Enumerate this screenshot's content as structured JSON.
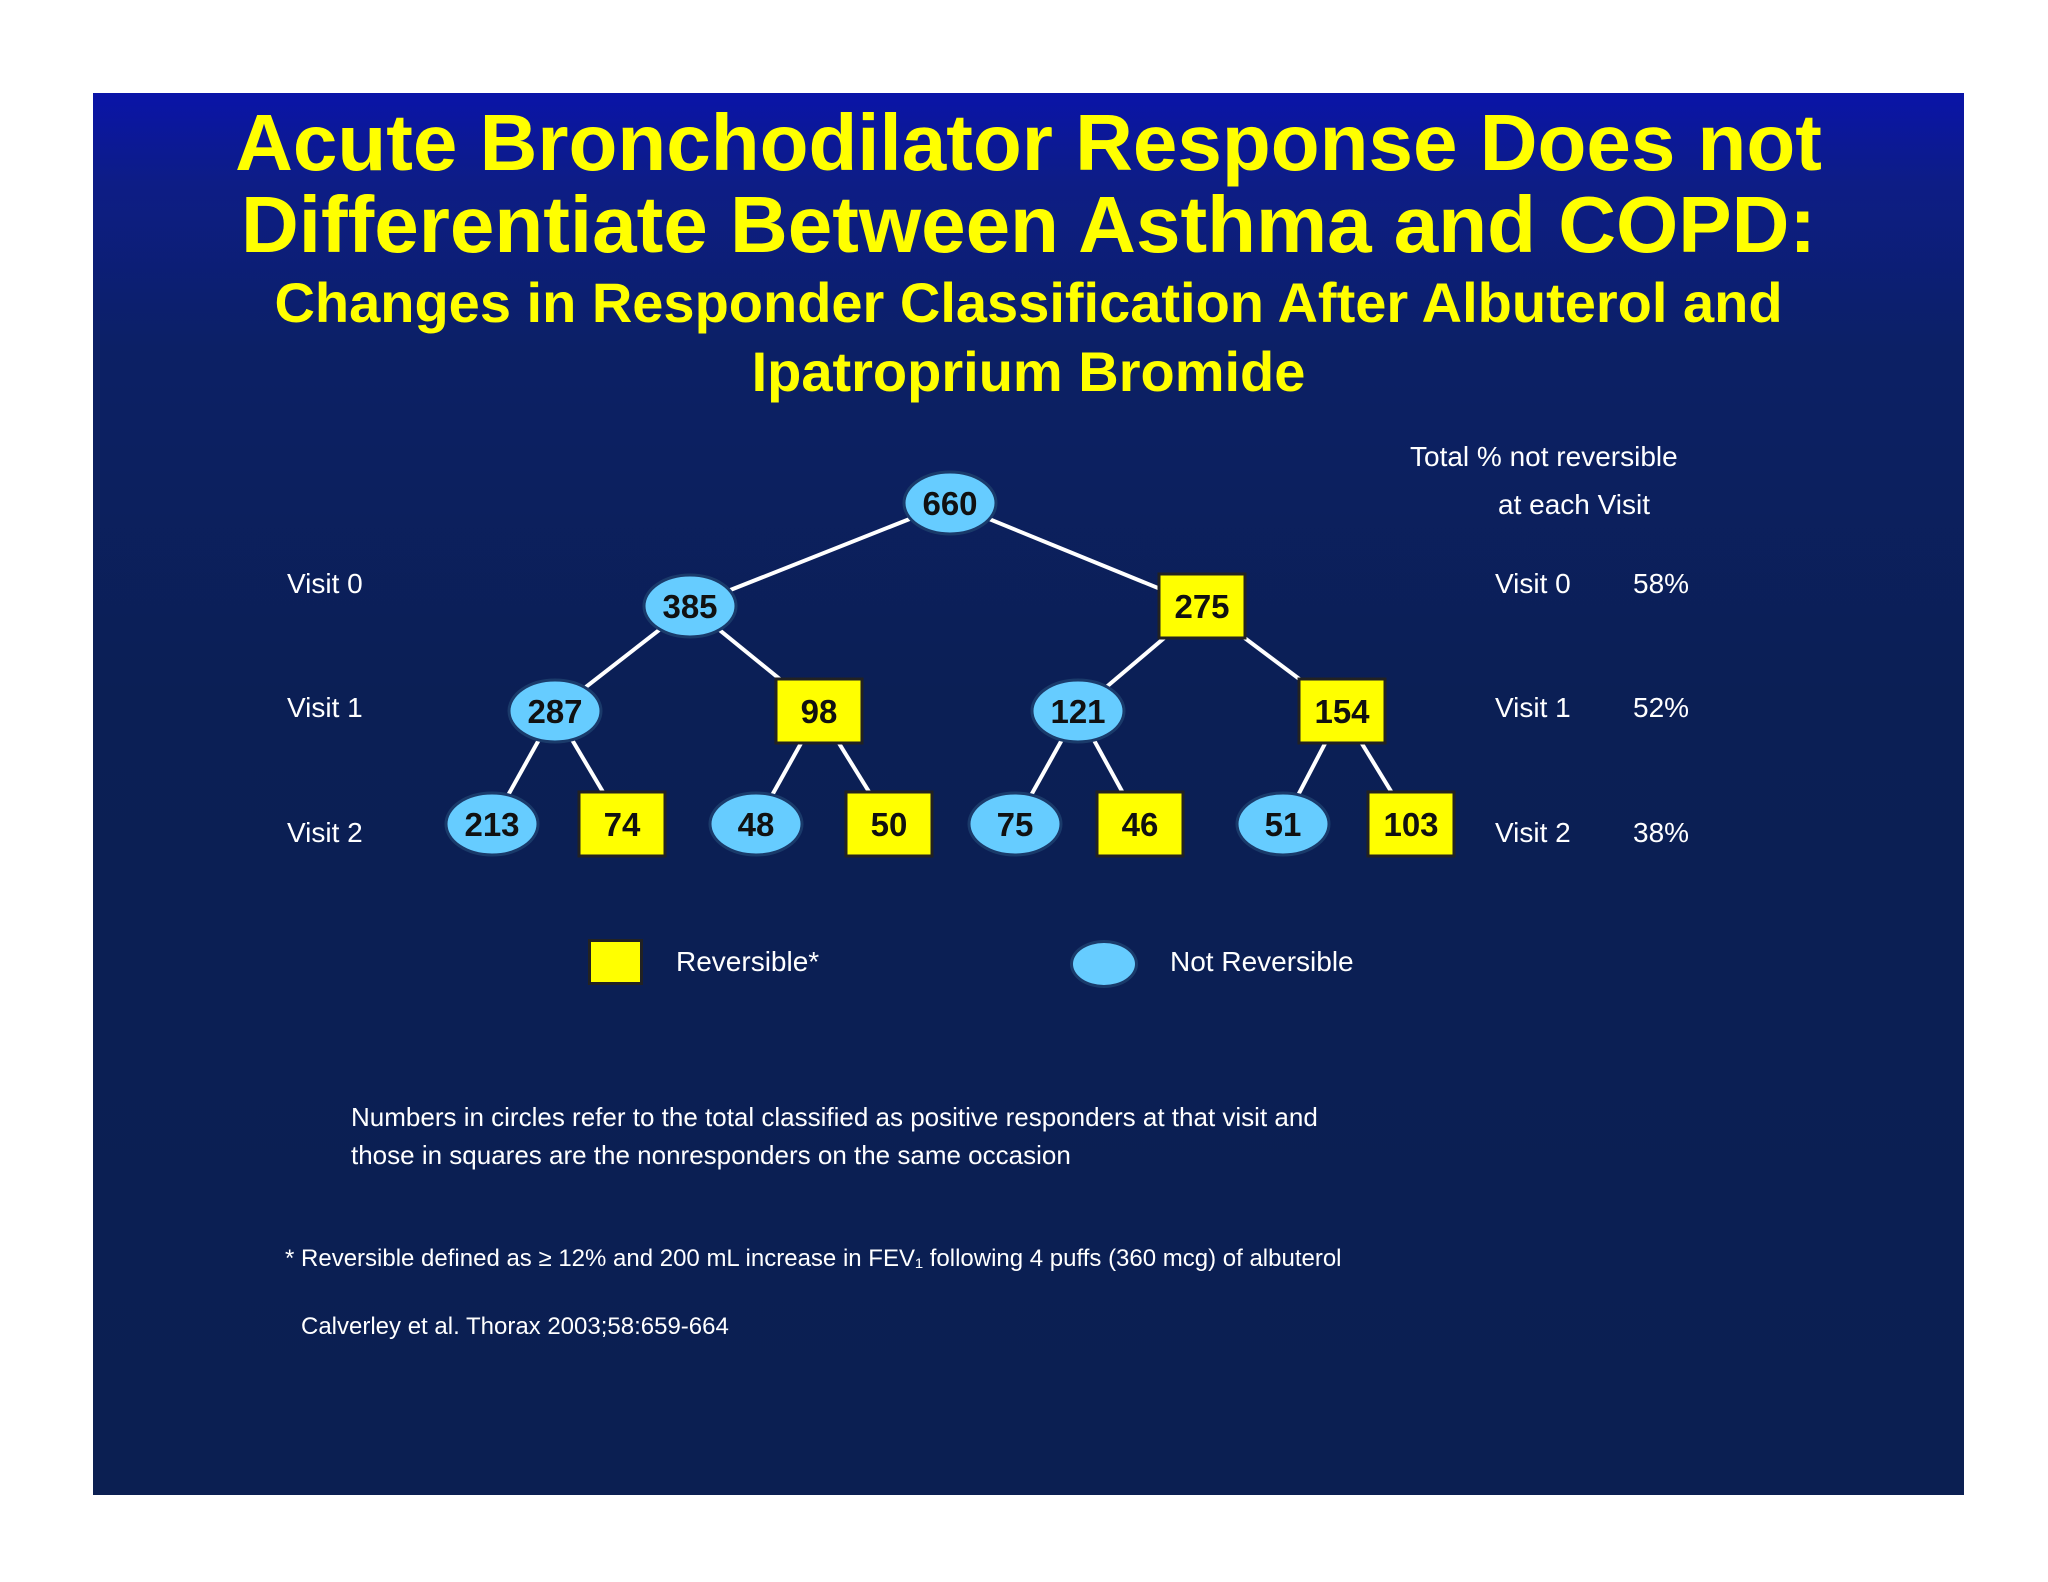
{
  "title": {
    "line1": "Acute Bronchodilator Response Does not",
    "line2": "Differentiate Between Asthma and COPD:",
    "sub1": "Changes in Responder Classification After Albuterol and",
    "sub2": "Ipatroprium Bromide"
  },
  "header_right": {
    "line1": "Total % not reversible",
    "line2": "at each Visit"
  },
  "visits": [
    {
      "label": "Visit 0",
      "pct_label": "Visit 0",
      "pct": "58%"
    },
    {
      "label": "Visit 1",
      "pct_label": "Visit 1",
      "pct": "52%"
    },
    {
      "label": "Visit 2",
      "pct_label": "Visit 2",
      "pct": "38%"
    }
  ],
  "nodes": {
    "root": {
      "value": "660",
      "shape": "oval"
    },
    "v0": [
      {
        "value": "385",
        "shape": "oval"
      },
      {
        "value": "275",
        "shape": "square"
      }
    ],
    "v1": [
      {
        "value": "287",
        "shape": "oval"
      },
      {
        "value": "98",
        "shape": "square"
      },
      {
        "value": "121",
        "shape": "oval"
      },
      {
        "value": "154",
        "shape": "square"
      }
    ],
    "v2": [
      {
        "value": "213",
        "shape": "oval"
      },
      {
        "value": "74",
        "shape": "square"
      },
      {
        "value": "48",
        "shape": "oval"
      },
      {
        "value": "50",
        "shape": "square"
      },
      {
        "value": "75",
        "shape": "oval"
      },
      {
        "value": "46",
        "shape": "square"
      },
      {
        "value": "51",
        "shape": "oval"
      },
      {
        "value": "103",
        "shape": "square"
      }
    ]
  },
  "legend": {
    "reversible": "Reversible*",
    "not_reversible": "Not Reversible"
  },
  "notes": {
    "line1": "Numbers in circles refer to the total classified as positive responders at that visit and",
    "line2": "those in squares are the nonresponders on the same occasion",
    "footnote": "* Reversible defined as ≥ 12% and 200 mL increase in FEV₁ following 4 puffs (360 mcg) of albuterol",
    "citation": "Calverley et al. Thorax 2003;58:659-664"
  },
  "colors": {
    "square_fill": "#ffff00",
    "oval_fill": "#66ccff",
    "title": "#ffff00",
    "background": "#0b1f55"
  }
}
